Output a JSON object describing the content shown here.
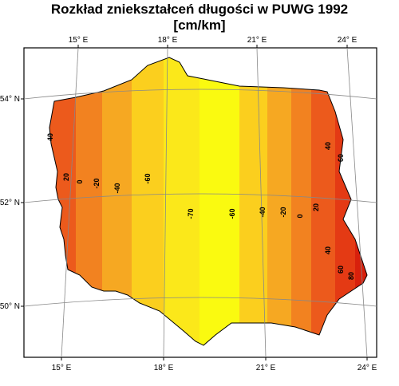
{
  "header": {
    "title": "Rozkład zniekształceń długości w PUWG 1992",
    "subtitle": "[cm/km]"
  },
  "axes": {
    "top_lon": [
      "15° E",
      "18° E",
      "21° E",
      "24° E"
    ],
    "bottom_lon": [
      "15° E",
      "18° E",
      "21° E",
      "24° E"
    ],
    "left_lat": [
      "54° N",
      "52° N",
      "50° N"
    ]
  },
  "contour_labels": [
    "40",
    "20",
    "0",
    "-20",
    "-40",
    "-60",
    "-70",
    "-60",
    "-40",
    "-20",
    "0",
    "20",
    "40",
    "60",
    "40",
    "60",
    "80"
  ]
}
